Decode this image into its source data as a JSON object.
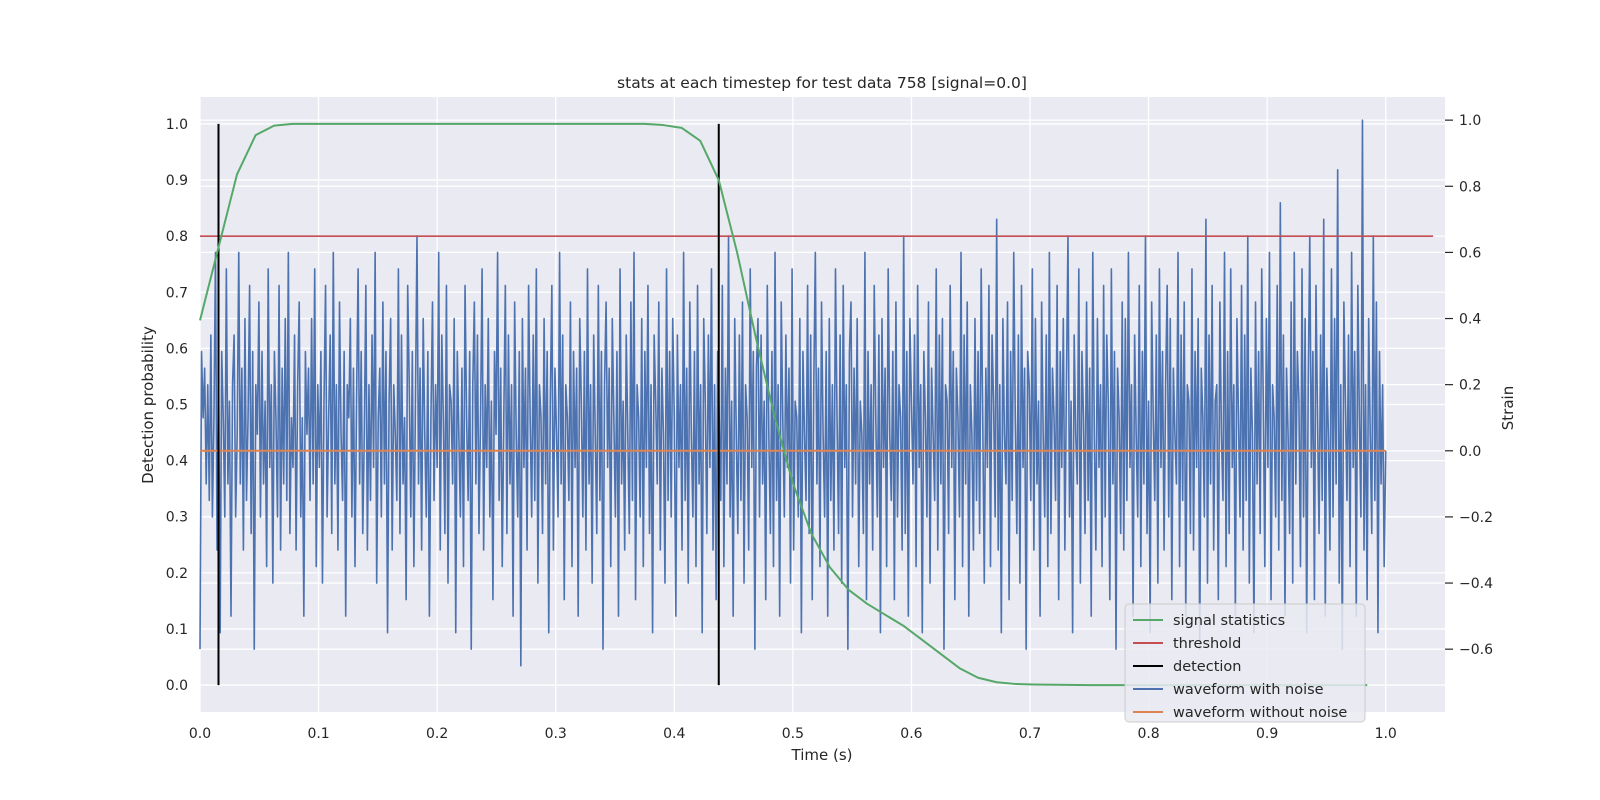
{
  "chart_data": {
    "type": "line",
    "title": "stats at each timestep for test data 758 [signal=0.0]",
    "xlabel": "Time (s)",
    "ylabel": "Detection probability",
    "ylabel_right": "Strain",
    "xlim": [
      0.0,
      1.05
    ],
    "ylim": [
      -0.048,
      1.048
    ],
    "ylim_right": [
      -0.79,
      1.07
    ],
    "xticks": [
      "0.0",
      "0.1",
      "0.2",
      "0.3",
      "0.4",
      "0.5",
      "0.6",
      "0.7",
      "0.8",
      "0.9",
      "1.0"
    ],
    "xtick_values": [
      0.0,
      0.1,
      0.2,
      0.3,
      0.4,
      0.5,
      0.6,
      0.7,
      0.8,
      0.9,
      1.0
    ],
    "yticks": [
      "0.0",
      "0.1",
      "0.2",
      "0.3",
      "0.4",
      "0.5",
      "0.6",
      "0.7",
      "0.8",
      "0.9",
      "1.0"
    ],
    "ytick_values": [
      0.0,
      0.1,
      0.2,
      0.3,
      0.4,
      0.5,
      0.6,
      0.7,
      0.8,
      0.9,
      1.0
    ],
    "yticks_right": [
      "−0.6",
      "−0.4",
      "−0.2",
      "0.0",
      "0.2",
      "0.4",
      "0.6",
      "0.8",
      "1.0"
    ],
    "ytick_values_right": [
      -0.6,
      -0.4,
      -0.2,
      0.0,
      0.2,
      0.4,
      0.6,
      0.8,
      1.0
    ],
    "grid": true,
    "legend_position": "bottom-right",
    "legend": [
      {
        "label": "signal statistics",
        "color": "#55a868"
      },
      {
        "label": "threshold",
        "color": "#c44e52"
      },
      {
        "label": "detection",
        "color": "#000000"
      },
      {
        "label": "waveform with noise",
        "color": "#4c72b0"
      },
      {
        "label": "waveform without noise",
        "color": "#dd8452"
      }
    ],
    "series": [
      {
        "name": "signal statistics",
        "axis": "left",
        "color": "#55a868",
        "x": [
          0.0,
          0.0156,
          0.0312,
          0.0469,
          0.0625,
          0.0781,
          0.0937,
          0.2,
          0.3,
          0.375,
          0.3906,
          0.4062,
          0.4219,
          0.4375,
          0.4531,
          0.4687,
          0.4844,
          0.5,
          0.5156,
          0.5312,
          0.5469,
          0.5625,
          0.5781,
          0.5937,
          0.6094,
          0.625,
          0.6406,
          0.6562,
          0.6719,
          0.6875,
          0.7031,
          0.75,
          0.8,
          0.9,
          0.9844
        ],
        "y": [
          0.65,
          0.78,
          0.91,
          0.98,
          0.997,
          1.0,
          1.0,
          1.0,
          1.0,
          1.0,
          0.998,
          0.993,
          0.97,
          0.9,
          0.77,
          0.62,
          0.48,
          0.36,
          0.27,
          0.21,
          0.17,
          0.145,
          0.125,
          0.105,
          0.08,
          0.055,
          0.03,
          0.013,
          0.005,
          0.002,
          0.001,
          0.0,
          0.0,
          0.0,
          0.0
        ]
      },
      {
        "name": "threshold",
        "axis": "left",
        "color": "#c44e52",
        "x": [
          0.0,
          1.04
        ],
        "y": [
          0.8,
          0.8
        ]
      },
      {
        "name": "detection",
        "axis": "left",
        "color": "#000000",
        "segments": [
          {
            "x": 0.0156,
            "y0": 0.0,
            "y1": 1.0
          },
          {
            "x": 0.4375,
            "y0": 0.0,
            "y1": 1.0
          }
        ]
      },
      {
        "name": "waveform without noise",
        "axis": "right",
        "color": "#dd8452",
        "x": [
          0.0,
          1.0
        ],
        "y": [
          0.0,
          0.0
        ]
      },
      {
        "name": "waveform with noise",
        "axis": "right",
        "color": "#4c72b0",
        "x_start": 0.0,
        "x_end": 1.0,
        "y": [
          -0.6,
          0.3,
          0.1,
          0.25,
          -0.1,
          0.2,
          -0.15,
          0.35,
          -0.2,
          0.1,
          0.6,
          -0.3,
          0.2,
          -0.55,
          0.3,
          0.1,
          -0.2,
          0.55,
          -0.1,
          0.15,
          -0.5,
          0.2,
          0.35,
          -0.2,
          0.05,
          0.6,
          -0.1,
          0.25,
          -0.3,
          0.4,
          -0.15,
          0.1,
          0.5,
          -0.25,
          0.3,
          -0.6,
          0.2,
          0.05,
          0.45,
          -0.2,
          0.3,
          -0.1,
          0.15,
          -0.35,
          0.55,
          -0.05,
          0.2,
          -0.4,
          0.3,
          0.1,
          -0.2,
          0.5,
          -0.3,
          0.25,
          -0.1,
          0.4,
          -0.15,
          0.6,
          -0.25,
          0.1,
          -0.05,
          0.35,
          -0.3,
          0.2,
          0.45,
          -0.2,
          0.1,
          -0.5,
          0.3,
          0.05,
          0.25,
          -0.15,
          0.4,
          -0.1,
          0.55,
          -0.35,
          0.2,
          -0.05,
          0.3,
          -0.4,
          0.15,
          0.5,
          -0.2,
          0.1,
          0.35,
          -0.25,
          0.6,
          -0.1,
          0.2,
          -0.3,
          0.45,
          0.05,
          -0.15,
          0.3,
          -0.5,
          0.2,
          0.1,
          0.4,
          -0.2,
          0.25,
          -0.35,
          0.15,
          0.55,
          -0.1,
          0.3,
          -0.25,
          0.05,
          0.5,
          -0.3,
          0.2,
          -0.15,
          0.35,
          -0.05,
          0.6,
          -0.4,
          0.1,
          0.25,
          -0.2,
          0.45,
          -0.1,
          0.3,
          -0.55,
          0.15,
          0.4,
          -0.3,
          0.2,
          0.05,
          -0.15,
          0.55,
          -0.25,
          0.35,
          -0.1,
          0.1,
          -0.45,
          0.5,
          0.2,
          -0.2,
          0.3,
          -0.35,
          0.15,
          0.65,
          -0.1,
          0.25,
          -0.3,
          0.4,
          0.05,
          -0.2,
          0.3,
          -0.5,
          0.1,
          0.45,
          -0.15,
          0.2,
          -0.05,
          0.6,
          -0.3,
          0.35,
          0.1,
          -0.25,
          0.5,
          -0.4,
          0.2,
          0.15,
          -0.1,
          0.4,
          -0.55,
          0.3,
          0.05,
          -0.2,
          0.25,
          -0.35,
          0.5,
          0.1,
          -0.15,
          0.3,
          -0.6,
          0.2,
          0.45,
          -0.1,
          0.35,
          -0.25,
          0.1,
          0.55,
          -0.3,
          0.2,
          -0.05,
          0.4,
          -0.2,
          0.15,
          -0.45,
          0.3,
          0.05,
          0.6,
          -0.15,
          0.25,
          -0.35,
          0.1,
          0.5,
          -0.25,
          0.35,
          -0.1,
          0.2,
          -0.5,
          0.45,
          0.05,
          -0.2,
          0.3,
          -0.65,
          0.4,
          -0.05,
          0.25,
          -0.3,
          0.5,
          0.1,
          -0.2,
          0.35,
          -0.15,
          0.55,
          -0.4,
          0.2,
          0.1,
          -0.25,
          0.4,
          -0.1,
          0.3,
          -0.55,
          0.15,
          0.5,
          -0.3,
          0.25,
          0.05,
          -0.2,
          0.6,
          -0.1,
          0.35,
          -0.45,
          0.2,
          0.1,
          -0.15,
          0.45,
          -0.35,
          0.3,
          -0.05,
          0.25,
          -0.5,
          0.4,
          0.15,
          -0.2,
          0.3,
          -0.3,
          0.55,
          -0.1,
          0.2,
          -0.4,
          0.35,
          0.05,
          -0.25,
          0.5,
          -0.15,
          0.3,
          -0.6,
          0.2,
          0.45,
          -0.05,
          0.25,
          -0.35,
          0.4,
          0.1,
          -0.2,
          0.3,
          -0.5,
          0.55,
          -0.1,
          0.15,
          -0.3,
          0.35,
          0.05,
          -0.25,
          0.45,
          -0.15,
          0.6,
          -0.45,
          0.2,
          0.1,
          -0.2,
          0.4,
          -0.35,
          0.3,
          -0.05,
          0.5,
          -0.25,
          0.2,
          -0.55,
          0.35,
          0.15,
          -0.1,
          0.45,
          -0.3,
          0.25,
          0.05,
          -0.4,
          0.55,
          -0.15,
          0.3,
          -0.2,
          0.4,
          0.1,
          -0.5,
          0.35,
          -0.05,
          0.2,
          -0.3,
          0.6,
          -0.15,
          0.25,
          -0.4,
          0.45,
          0.05,
          -0.2,
          0.3,
          -0.35,
          0.5,
          -0.1,
          0.2,
          -0.55,
          0.4,
          0.15,
          -0.25,
          0.35,
          -0.05,
          0.55,
          -0.3,
          0.2,
          -0.45,
          0.3,
          0.1,
          -0.15,
          0.5,
          -0.35,
          0.25,
          -0.1,
          0.65,
          -0.2,
          0.15,
          -0.5,
          0.4,
          0.05,
          -0.25,
          0.35,
          -0.15,
          0.45,
          -0.4,
          0.2,
          0.1,
          -0.3,
          0.55,
          -0.05,
          0.3,
          -0.6,
          0.25,
          0.4,
          -0.2,
          0.35,
          -0.1,
          0.15,
          -0.45,
          0.5,
          0.05,
          -0.25,
          0.3,
          -0.35,
          0.6,
          -0.15,
          0.2,
          -0.5,
          0.45,
          0.1,
          -0.2,
          0.35,
          -0.05,
          0.25,
          -0.4,
          0.55,
          -0.3,
          0.15,
          0.1,
          -0.2,
          0.4,
          -0.55,
          0.3,
          0.05,
          -0.15,
          0.5,
          -0.25,
          0.35,
          -0.45,
          0.2,
          0.6,
          -0.1,
          0.25,
          -0.35,
          0.45,
          0.05,
          -0.2,
          0.3,
          -0.5,
          0.4,
          -0.15,
          0.2,
          -0.3,
          0.55,
          0.1,
          -0.25,
          0.35,
          -0.4,
          0.5,
          -0.05,
          0.2,
          -0.6,
          0.3,
          0.45,
          -0.2,
          0.25,
          -0.1,
          0.4,
          -0.35,
          0.15,
          0.05,
          -0.25,
          0.6,
          -0.45,
          0.3,
          -0.1,
          0.2,
          -0.3,
          0.5,
          0.1,
          -0.2,
          0.35,
          -0.55,
          0.4,
          -0.05,
          0.25,
          -0.35,
          0.55,
          0.05,
          -0.15,
          0.3,
          -0.45,
          0.45,
          -0.2,
          0.2,
          0.1,
          -0.3,
          0.65,
          -0.25,
          0.3,
          -0.5,
          0.4,
          0.15,
          -0.1,
          0.35,
          -0.35,
          0.5,
          -0.05,
          0.2,
          -0.55,
          0.3,
          0.1,
          -0.2,
          0.45,
          -0.4,
          0.25,
          0.05,
          -0.15,
          0.55,
          -0.3,
          0.35,
          -0.1,
          0.4,
          -0.6,
          0.2,
          0.15,
          -0.25,
          0.5,
          -0.05,
          0.3,
          -0.45,
          0.25,
          0.1,
          -0.2,
          0.6,
          -0.35,
          0.35,
          -0.1,
          0.45,
          -0.5,
          0.2,
          0.05,
          -0.3,
          0.4,
          -0.15,
          0.3,
          -0.25,
          0.55,
          0.1,
          -0.4,
          0.25,
          -0.05,
          0.5,
          -0.35,
          0.35,
          0.15,
          -0.2,
          0.7,
          -0.3,
          0.2,
          -0.55,
          0.4,
          0.05,
          -0.1,
          0.45,
          -0.45,
          0.3,
          -0.15,
          0.6,
          0.1,
          -0.25,
          0.35,
          -0.4,
          0.5,
          -0.05,
          0.25,
          -0.6,
          0.3,
          0.2,
          -0.15,
          0.55,
          -0.3,
          0.4,
          -0.1,
          0.15,
          -0.5,
          0.45,
          0.05,
          -0.2,
          0.35,
          -0.35,
          0.6,
          -0.25,
          0.25,
          0.1,
          -0.15,
          0.5,
          -0.45,
          0.3,
          -0.05,
          0.4,
          -0.3,
          0.2,
          0.65,
          -0.2,
          0.15,
          -0.55,
          0.35,
          0.05,
          -0.1,
          0.55,
          -0.4,
          0.3,
          0.1,
          -0.25,
          0.45,
          -0.15,
          0.25,
          -0.5,
          0.6,
          0.05,
          -0.3,
          0.4,
          -0.05,
          0.2,
          -0.35,
          0.5,
          -0.2,
          0.35,
          0.15,
          -0.45,
          0.55,
          -0.1,
          0.3,
          -0.6,
          0.25,
          0.1,
          -0.25,
          0.45,
          -0.3,
          0.4,
          -0.15,
          0.6,
          -0.05,
          0.2,
          -0.5,
          0.35,
          0.05,
          -0.2,
          0.5,
          -0.35,
          0.3,
          -0.1,
          0.65,
          -0.25,
          0.15,
          -0.55,
          0.45,
          0.1,
          -0.15,
          0.35,
          -0.4,
          0.55,
          -0.05,
          0.3,
          -0.3,
          0.2,
          0.5,
          -0.2,
          0.4,
          -0.45,
          0.25,
          0.05,
          -0.1,
          0.6,
          -0.35,
          0.35,
          -0.15,
          0.45,
          -0.5,
          0.2,
          0.15,
          -0.25,
          0.55,
          -0.3,
          0.3,
          -0.05,
          0.4,
          -0.6,
          0.25,
          0.1,
          -0.2,
          0.7,
          -0.4,
          0.35,
          -0.1,
          0.5,
          -0.3,
          0.15,
          0.2,
          -0.45,
          0.45,
          0.05,
          -0.15,
          0.6,
          -0.35,
          0.3,
          -0.25,
          0.55,
          -0.05,
          0.2,
          -0.5,
          0.4,
          0.1,
          -0.2,
          0.5,
          -0.3,
          0.35,
          -0.15,
          0.65,
          -0.4,
          0.25,
          0.05,
          -0.55,
          0.45,
          -0.1,
          0.3,
          -0.25,
          0.55,
          0.15,
          -0.35,
          0.4,
          -0.05,
          0.6,
          -0.45,
          0.2,
          0.1,
          -0.2,
          0.5,
          -0.3,
          0.75,
          -0.15,
          0.35,
          -0.5,
          0.25,
          0.05,
          -0.25,
          0.45,
          -0.4,
          0.6,
          -0.1,
          0.3,
          0.15,
          -0.35,
          0.55,
          -0.2,
          0.4,
          -0.55,
          0.2,
          0.65,
          -0.05,
          0.3,
          -0.45,
          0.5,
          0.1,
          -0.25,
          0.35,
          -0.15,
          0.7,
          -0.5,
          0.25,
          0.05,
          -0.3,
          0.55,
          -0.2,
          0.4,
          -0.1,
          0.85,
          -0.4,
          0.2,
          -0.6,
          0.45,
          0.15,
          -0.15,
          0.35,
          -0.35,
          0.6,
          -0.05,
          0.3,
          -0.5,
          0.5,
          0.1,
          -0.2,
          1.0,
          -0.3,
          0.2,
          -0.45,
          0.4,
          0.05,
          -0.25,
          0.65,
          -0.15,
          0.45,
          -0.55,
          0.3,
          -0.1,
          0.2,
          -0.35,
          0.0
        ]
      }
    ]
  }
}
